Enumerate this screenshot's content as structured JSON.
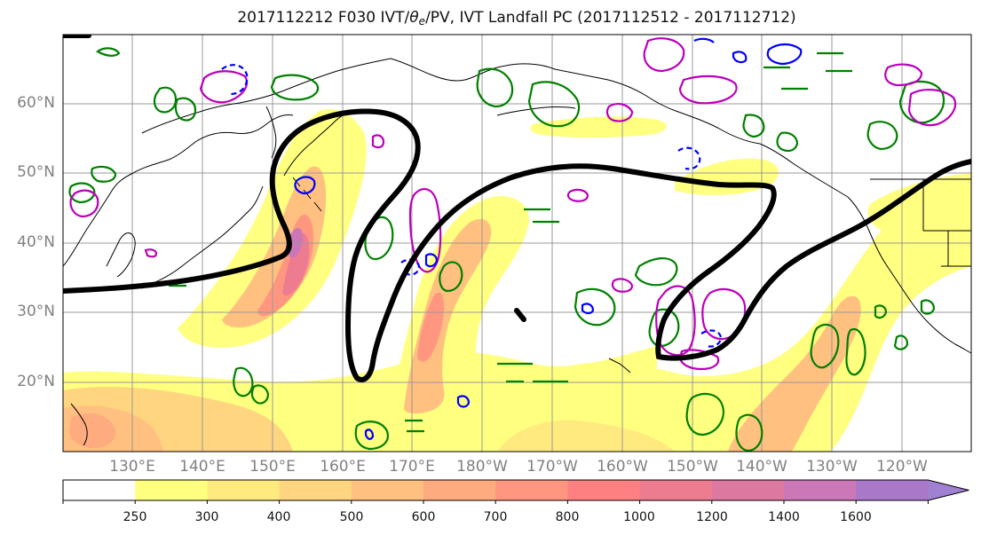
{
  "title_main": "2017112212 F030 IVT/",
  "title_theta": "θ",
  "title_sub_e": "e",
  "title_rest": "/PV, IVT Landfall PC (2017112512 - 2017112712)",
  "latitude_labels": [
    "60°N",
    "50°N",
    "40°N",
    "30°N",
    "20°N"
  ],
  "longitude_labels": [
    "130°E",
    "140°E",
    "150°E",
    "160°E",
    "170°E",
    "180°W",
    "170°W",
    "160°W",
    "150°W",
    "140°W",
    "130°W",
    "120°W"
  ],
  "colorbar": {
    "levels": [
      "250",
      "300",
      "400",
      "500",
      "600",
      "700",
      "800",
      "1000",
      "1200",
      "1400",
      "1600"
    ],
    "colors": [
      "#ffff80",
      "#ffea80",
      "#ffd580",
      "#ffc080",
      "#ffab80",
      "#ff9680",
      "#ff8080",
      "#ee7c90",
      "#dd78a0",
      "#cc78b8",
      "#aa78c8",
      "#a080d0"
    ]
  },
  "contour_colors": {
    "landfall_pc": "#000000",
    "theta_e": "#008000",
    "pv_positive": "#bb00bb",
    "pv_negative": "#0000ff",
    "coastline": "#000000"
  }
}
